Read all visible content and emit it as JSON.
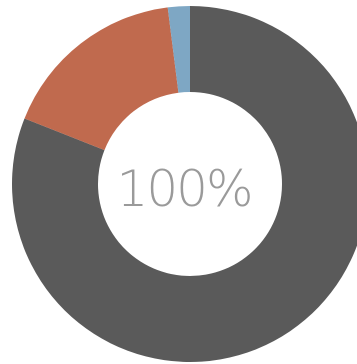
{
  "chart_data": {
    "type": "pie",
    "center_label": "100%",
    "values": [
      81,
      17,
      2
    ],
    "colors": [
      "#5a5a5a",
      "#c06a4e",
      "#7ea7c4"
    ],
    "start_angle_deg": 0,
    "direction": "clockwise",
    "legend": "none"
  }
}
